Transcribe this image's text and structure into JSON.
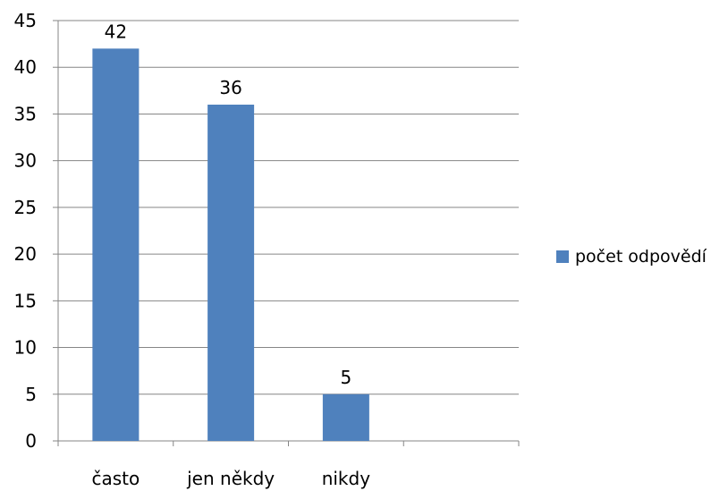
{
  "chart_data": {
    "type": "bar",
    "title": "",
    "xlabel": "",
    "ylabel": "",
    "categories": [
      "často",
      "jen někdy",
      "nikdy",
      ""
    ],
    "series": [
      {
        "name": "počet odpovědí",
        "values": [
          42,
          36,
          5,
          null
        ],
        "color": "#4f81bd"
      }
    ],
    "data_labels": [
      "42",
      "36",
      "5",
      ""
    ],
    "ylim": [
      0,
      45
    ],
    "yticks": [
      0,
      5,
      10,
      15,
      20,
      25,
      30,
      35,
      40,
      45
    ],
    "ytick_labels": [
      "0",
      "5",
      "10",
      "15",
      "20",
      "25",
      "30",
      "35",
      "40",
      "45"
    ],
    "grid": true,
    "legend_position": "right"
  }
}
